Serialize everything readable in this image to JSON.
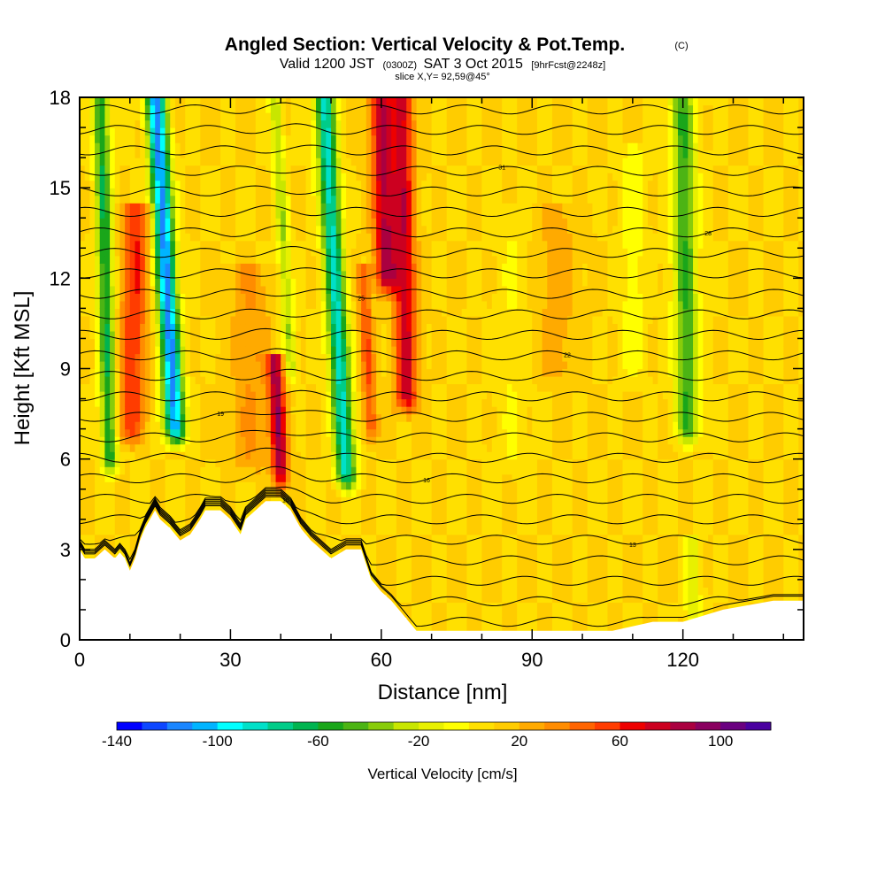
{
  "title": {
    "main": "Angled Section: Vertical Velocity & Pot.Temp.",
    "units_tag": "(C)",
    "valid_prefix": "Valid 1200 JST",
    "valid_utc": "(0300Z)",
    "valid_date": "SAT 3 Oct 2015",
    "forecast_tag": "[9hrFcst@2248z]",
    "slice": "slice X,Y= 92,59@45°"
  },
  "chart_data": {
    "type": "heatmap",
    "xlabel": "Distance [nm]",
    "ylabel": "Height [Kft MSL]",
    "xlim": [
      0,
      144
    ],
    "ylim": [
      0,
      18
    ],
    "xticks": [
      {
        "v": 0,
        "label": "0"
      },
      {
        "v": 30,
        "label": "30"
      },
      {
        "v": 60,
        "label": "60"
      },
      {
        "v": 90,
        "label": "90"
      },
      {
        "v": 120,
        "label": "120"
      }
    ],
    "yticks": [
      {
        "v": 0,
        "label": "0"
      },
      {
        "v": 3,
        "label": "3"
      },
      {
        "v": 6,
        "label": "6"
      },
      {
        "v": 9,
        "label": "9"
      },
      {
        "v": 12,
        "label": "12"
      },
      {
        "v": 15,
        "label": "15"
      },
      {
        "v": 18,
        "label": "18"
      }
    ],
    "background_value": 10,
    "features": [
      {
        "name": "downdraft",
        "x": 6,
        "w": 1.6,
        "ybot": 6.0,
        "ytop": 18,
        "amp": -70,
        "tilt": -0.15
      },
      {
        "name": "updraft",
        "x": 10,
        "w": 2.6,
        "ybot": 7.0,
        "ytop": 14,
        "amp": 50,
        "tilt": 0.2
      },
      {
        "name": "downdraft",
        "x": 19,
        "w": 2.0,
        "ybot": 7.0,
        "ytop": 18,
        "amp": -125,
        "tilt": -0.35
      },
      {
        "name": "updraft",
        "x": 40,
        "w": 1.6,
        "ybot": 5.5,
        "ytop": 9,
        "amp": 75,
        "tilt": -0.3
      },
      {
        "name": "downdraft",
        "x": 42,
        "w": 1.2,
        "ybot": 9.0,
        "ytop": 18,
        "amp": -40,
        "tilt": -0.35
      },
      {
        "name": "downdraft",
        "x": 53,
        "w": 2.0,
        "ybot": 5.5,
        "ytop": 18,
        "amp": -95,
        "tilt": -0.35
      },
      {
        "name": "updraft",
        "x": 58,
        "w": 1.4,
        "ybot": 7.0,
        "ytop": 12,
        "amp": 40,
        "tilt": -0.3
      },
      {
        "name": "updraft",
        "x": 61,
        "w": 2.2,
        "ybot": 12.0,
        "ytop": 18,
        "amp": 70,
        "tilt": -0.2
      },
      {
        "name": "updraft",
        "x": 65,
        "w": 2.2,
        "ybot": 8.0,
        "ytop": 18,
        "amp": 65,
        "tilt": -0.1
      },
      {
        "name": "downdraft",
        "x": 121,
        "w": 2.4,
        "ybot": 7.0,
        "ytop": 18,
        "amp": -60,
        "tilt": -0.1
      },
      {
        "name": "weak-sink",
        "x": 110,
        "w": 2.5,
        "ybot": 9.0,
        "ytop": 16,
        "amp": -15,
        "tilt": 0.0
      },
      {
        "name": "weak-sink",
        "x": 86,
        "w": 3.0,
        "ybot": 6.0,
        "ytop": 14,
        "amp": -10,
        "tilt": 0.0
      },
      {
        "name": "weak-lift",
        "x": 95,
        "w": 4.0,
        "ybot": 9.0,
        "ytop": 14,
        "amp": 15,
        "tilt": 0.0
      },
      {
        "name": "weak-lift",
        "x": 34,
        "w": 4.0,
        "ybot": 6.0,
        "ytop": 12,
        "amp": 20,
        "tilt": 0.0
      },
      {
        "name": "weak-sink",
        "x": 122,
        "w": 1.5,
        "ybot": 1.0,
        "ytop": 3,
        "amp": -30,
        "tilt": 0.0
      }
    ],
    "terrain": [
      [
        0,
        3.0
      ],
      [
        1,
        2.7
      ],
      [
        3,
        2.7
      ],
      [
        5,
        3.0
      ],
      [
        7,
        2.7
      ],
      [
        8,
        2.9
      ],
      [
        9,
        2.7
      ],
      [
        10,
        2.3
      ],
      [
        11,
        2.7
      ],
      [
        12,
        3.3
      ],
      [
        13,
        3.7
      ],
      [
        14,
        4.0
      ],
      [
        15,
        4.3
      ],
      [
        16,
        4.0
      ],
      [
        18,
        3.7
      ],
      [
        19,
        3.5
      ],
      [
        20,
        3.3
      ],
      [
        22,
        3.5
      ],
      [
        24,
        4.0
      ],
      [
        25,
        4.3
      ],
      [
        28,
        4.3
      ],
      [
        30,
        4.0
      ],
      [
        32,
        3.5
      ],
      [
        33,
        4.0
      ],
      [
        35,
        4.3
      ],
      [
        37,
        4.6
      ],
      [
        40,
        4.6
      ],
      [
        42,
        4.3
      ],
      [
        44,
        3.7
      ],
      [
        46,
        3.3
      ],
      [
        48,
        3.0
      ],
      [
        50,
        2.7
      ],
      [
        53,
        3.0
      ],
      [
        56,
        3.0
      ],
      [
        57,
        2.5
      ],
      [
        58,
        2.0
      ],
      [
        60,
        1.6
      ],
      [
        62,
        1.3
      ],
      [
        64,
        0.9
      ],
      [
        66,
        0.5
      ],
      [
        67,
        0.3
      ],
      [
        72,
        0.3
      ],
      [
        80,
        0.3
      ],
      [
        90,
        0.3
      ],
      [
        100,
        0.3
      ],
      [
        106,
        0.3
      ],
      [
        114,
        0.6
      ],
      [
        120,
        0.6
      ],
      [
        128,
        1.0
      ],
      [
        138,
        1.3
      ],
      [
        144,
        1.3
      ]
    ],
    "theta_start": 9,
    "theta_step": 1,
    "theta_count": 27,
    "theta_label_stride": 3,
    "colorbar": {
      "title": "Vertical Velocity [cm/s]",
      "min": -140,
      "max": 120,
      "step": 10,
      "labels": [
        {
          "v": -140,
          "label": "-140"
        },
        {
          "v": -100,
          "label": "-100"
        },
        {
          "v": -60,
          "label": "-60"
        },
        {
          "v": -20,
          "label": "-20"
        },
        {
          "v": 20,
          "label": "20"
        },
        {
          "v": 60,
          "label": "60"
        },
        {
          "v": 100,
          "label": "100"
        }
      ],
      "colors": [
        "#0000ff",
        "#0d47ff",
        "#1a86ff",
        "#00b4ff",
        "#00ffff",
        "#00e0c8",
        "#00cc88",
        "#00b450",
        "#1aa61a",
        "#4cb414",
        "#88cc0a",
        "#c8e600",
        "#e8f000",
        "#ffff00",
        "#ffe000",
        "#ffcc00",
        "#ffaa00",
        "#ff8c00",
        "#ff6400",
        "#ff3c00",
        "#ee0000",
        "#cc0020",
        "#aa0040",
        "#8a0060",
        "#6a0080",
        "#4a00a0"
      ]
    }
  }
}
